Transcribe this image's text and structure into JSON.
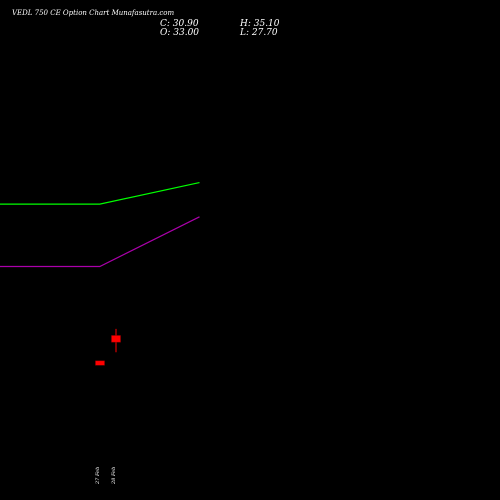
{
  "header": {
    "title": "VEDL 750  CE Option  Chart Munafasutra.com",
    "close_label": "C: 30.90",
    "open_label": "O: 33.00",
    "high_label": "H: 35.10",
    "low_label": "L: 27.70"
  },
  "chart_data": {
    "type": "candlestick",
    "title": "VEDL 750  CE Option  Chart Munafasutra.com",
    "x_labels": [
      "27 Feb",
      "28 Feb"
    ],
    "candles": [
      {
        "date": "27 Feb",
        "open": 25.0,
        "high": 25.0,
        "low": 23.6,
        "close": 23.6,
        "color": "#ff0000"
      },
      {
        "date": "28 Feb",
        "open": 33.0,
        "high": 35.1,
        "low": 27.7,
        "close": 30.9,
        "color": "#ff0000"
      }
    ],
    "series": [
      {
        "color": "#00ff00",
        "points": [
          [
            0,
            74.5
          ],
          [
            9.5,
            74.5
          ],
          [
            19,
            81.3
          ]
        ]
      },
      {
        "color": "#aa00aa",
        "points": [
          [
            0,
            54.8
          ],
          [
            9.5,
            54.8
          ],
          [
            19,
            70.5
          ]
        ]
      }
    ],
    "ylim": [
      0,
      120
    ],
    "grid": false
  }
}
